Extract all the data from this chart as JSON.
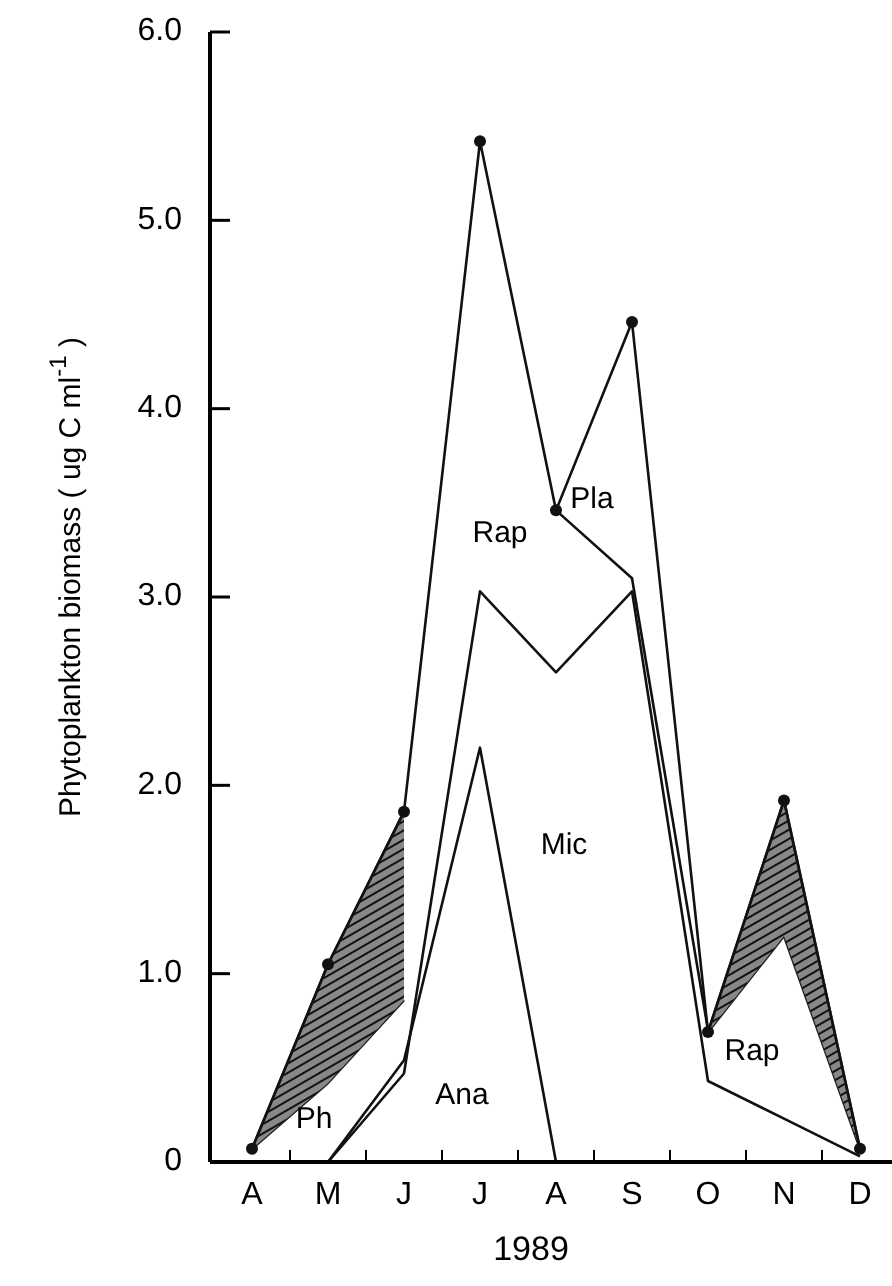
{
  "chart_data": {
    "type": "line",
    "xlabel": "1989",
    "ylabel": "Phytoplankton biomass  ( ug C ml$^{-1}$ )",
    "categories": [
      "A",
      "M",
      "J",
      "J",
      "A",
      "S",
      "O",
      "N",
      "D"
    ],
    "ylim": [
      0,
      6
    ],
    "yticks": [
      0,
      {
        "value": 1,
        "label": "1.0"
      },
      {
        "value": 2,
        "label": "2.0"
      },
      {
        "value": 3,
        "label": "3.0"
      },
      {
        "value": 4,
        "label": "4.0"
      },
      {
        "value": 5,
        "label": "5.0"
      },
      {
        "value": 6,
        "label": "6.0"
      }
    ],
    "grid": false,
    "series": [
      {
        "color": "#111111",
        "marker": "circle",
        "values": [
          0.07,
          1.05,
          1.86,
          5.42,
          3.46,
          4.46,
          0.69,
          1.92,
          0.07
        ]
      },
      {
        "color": "#333333",
        "marker": "none",
        "values": [
          0.07,
          1.05,
          1.86,
          null,
          null,
          null,
          null,
          null,
          null
        ],
        "lower": [
          0.07,
          0.42,
          0.86,
          null,
          null,
          null,
          null,
          null,
          null
        ],
        "upper": [
          0.07,
          1.05,
          1.86,
          null,
          null,
          null,
          null,
          null,
          null
        ]
      },
      {
        "color": "#333333",
        "marker": "none",
        "values": [
          null,
          null,
          null,
          null,
          null,
          null,
          0.69,
          1.92,
          0.07
        ],
        "lower": [
          null,
          null,
          null,
          null,
          null,
          null,
          0.69,
          1.2,
          0.07
        ],
        "upper": [
          null,
          null,
          null,
          null,
          null,
          null,
          0.69,
          1.92,
          0.07
        ]
      },
      {
        "color": "#111111",
        "marker": "none",
        "values": [
          null,
          0,
          0.47,
          3.03,
          2.6,
          3.03,
          0.43,
          0.23,
          0.03
        ]
      },
      {
        "color": "#111111",
        "marker": "none",
        "values": [
          null,
          0,
          0.54,
          2.2,
          0,
          null,
          null,
          null,
          null
        ]
      },
      {
        "color": "#111111",
        "marker": "none",
        "values": [
          null,
          null,
          null,
          null,
          3.46,
          3.1,
          0.7,
          null,
          null
        ]
      },
      {
        "color": "#222222",
        "marker": "none",
        "values": [
          0.07,
          0.42,
          0.86,
          null,
          null,
          null,
          0.69,
          1.2,
          0.07
        ]
      }
    ],
    "annotations": [
      "Ph",
      "Ana",
      "Mic",
      "Rap",
      "Pla",
      "Rap"
    ]
  }
}
